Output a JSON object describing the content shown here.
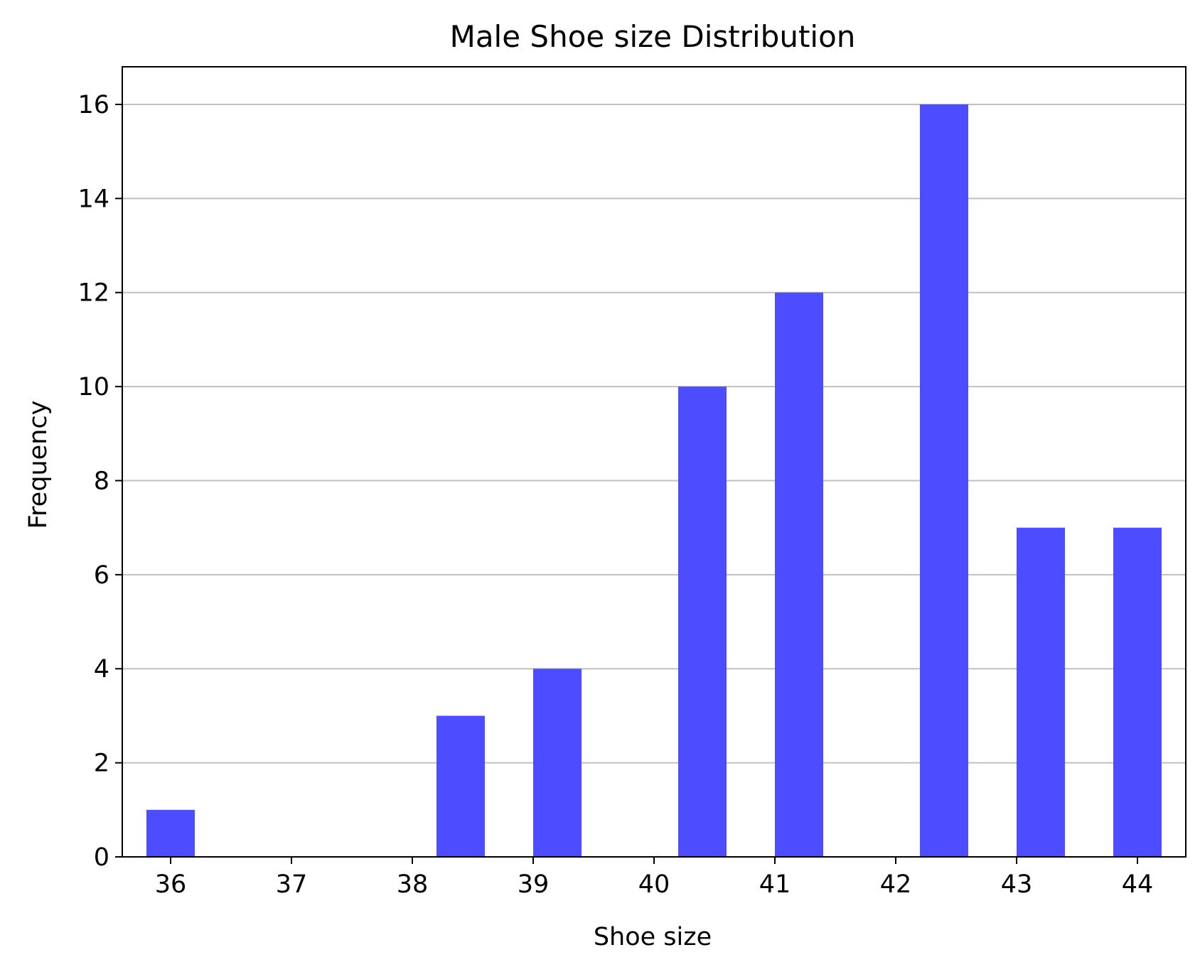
{
  "chart_data": {
    "type": "bar",
    "title": "Male Shoe size Distribution",
    "xlabel": "Shoe size",
    "ylabel": "Frequency",
    "x": [
      36,
      37.2,
      38.4,
      39.2,
      40.4,
      41.2,
      42.4,
      43.2,
      44
    ],
    "values": [
      1,
      0,
      3,
      4,
      10,
      12,
      16,
      7,
      7
    ],
    "bin_width": 0.4,
    "xlim": [
      35.6,
      44.4
    ],
    "ylim": [
      0,
      16.8
    ],
    "xticks": [
      36,
      37,
      38,
      39,
      40,
      41,
      42,
      43,
      44
    ],
    "yticks": [
      0,
      2,
      4,
      6,
      8,
      10,
      12,
      14,
      16
    ],
    "grid": "horizontal",
    "colors": {
      "bar": "#4d4dff",
      "grid": "#c0c0c0",
      "axis": "#000000"
    }
  }
}
